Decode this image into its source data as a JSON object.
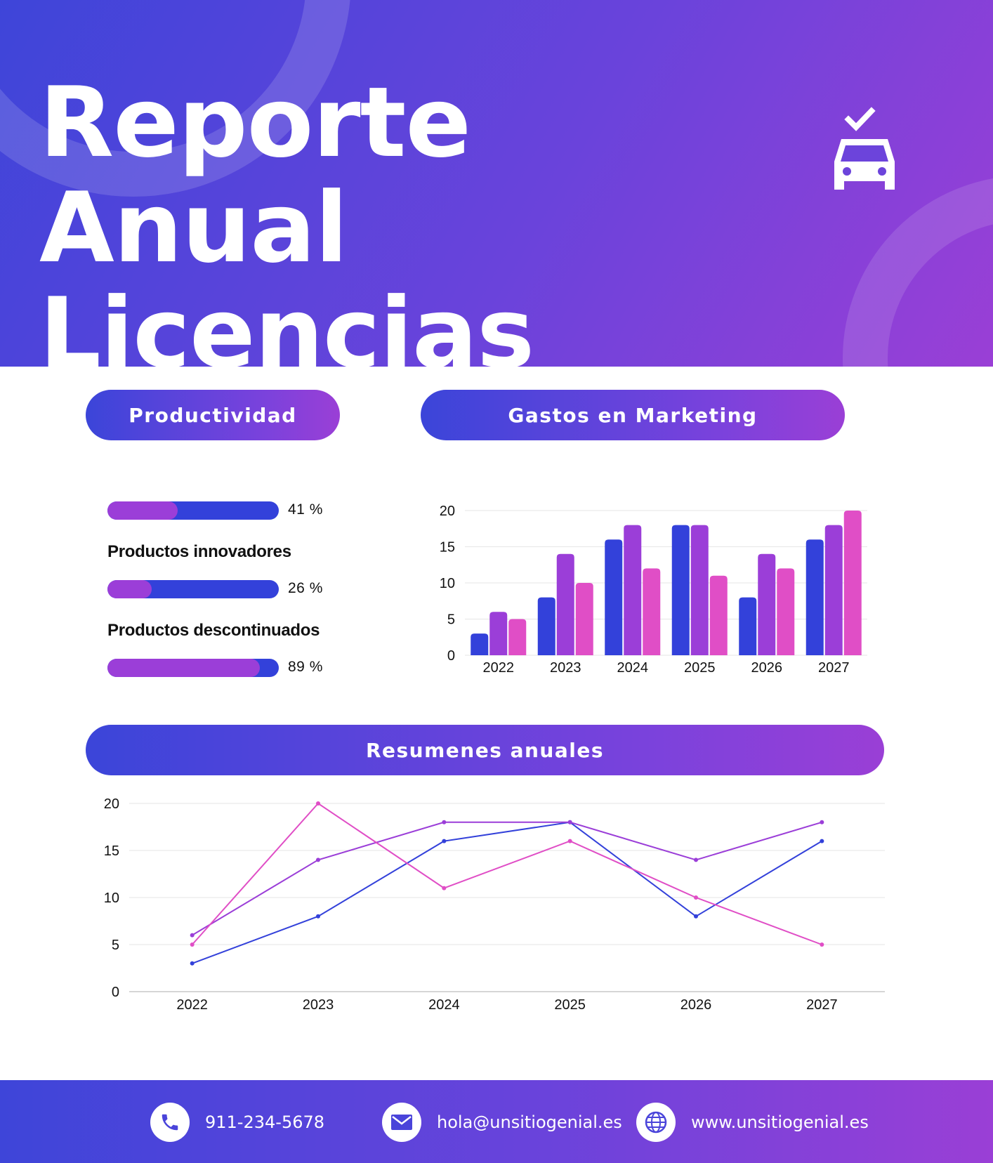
{
  "header": {
    "title_line1": "Reporte Anual",
    "title_line2": "Licencias",
    "icon": "car-check-icon"
  },
  "sections": {
    "productividad": "Productividad",
    "gastos": "Gastos en Marketing",
    "resumenes": "Resumenes anuales"
  },
  "productividad": {
    "items": [
      {
        "label": "",
        "value": 41,
        "value_text": "41 %"
      },
      {
        "label": "Productos innovadores",
        "value": 26,
        "value_text": "26 %"
      },
      {
        "label": "Productos descontinuados",
        "value": 89,
        "value_text": "89 %"
      }
    ]
  },
  "colors": {
    "blue": "#3341da",
    "purple": "#9b3ed8",
    "pink": "#e04ec6"
  },
  "chart_data": [
    {
      "type": "bar",
      "title": "Gastos en Marketing",
      "categories": [
        "2022",
        "2023",
        "2024",
        "2025",
        "2026",
        "2027"
      ],
      "series": [
        {
          "values": [
            3,
            8,
            16,
            18,
            8,
            16
          ],
          "color": "#3341da"
        },
        {
          "values": [
            6,
            14,
            18,
            18,
            14,
            18
          ],
          "color": "#9b3ed8"
        },
        {
          "values": [
            5,
            10,
            12,
            11,
            12,
            20
          ],
          "color": "#e04ec6"
        }
      ],
      "ylim": [
        0,
        20
      ],
      "yticks": [
        0,
        5,
        10,
        15,
        20
      ],
      "grid": true
    },
    {
      "type": "line",
      "title": "Resumenes anuales",
      "categories": [
        "2022",
        "2023",
        "2024",
        "2025",
        "2026",
        "2027"
      ],
      "series": [
        {
          "values": [
            3,
            8,
            16,
            18,
            8,
            16
          ],
          "color": "#3341da"
        },
        {
          "values": [
            6,
            14,
            18,
            18,
            14,
            18
          ],
          "color": "#9b3ed8"
        },
        {
          "values": [
            5,
            20,
            11,
            16,
            10,
            5
          ],
          "color": "#e04ec6"
        }
      ],
      "ylim": [
        0,
        20
      ],
      "yticks": [
        0,
        5,
        10,
        15,
        20
      ],
      "grid": true
    }
  ],
  "footer": {
    "phone": "911-234-5678",
    "email": "hola@unsitiogenial.es",
    "web": "www.unsitiogenial.es"
  }
}
